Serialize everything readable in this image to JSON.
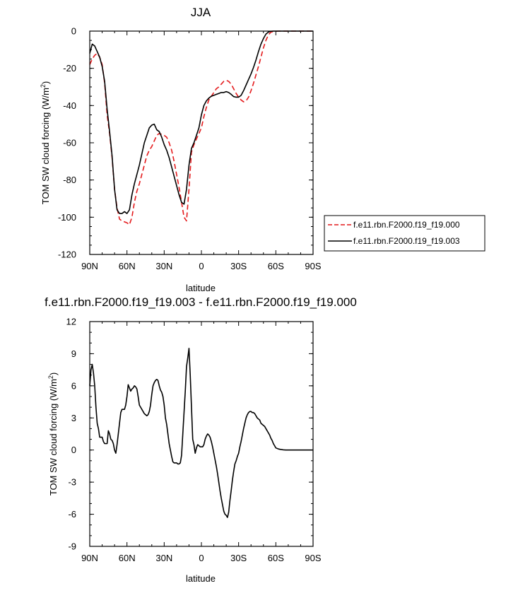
{
  "chart_data": [
    {
      "type": "line",
      "title": "JJA",
      "xlabel": "latitude",
      "ylabel_main": "TOM SW cloud forcing (W/m",
      "ylabel_sup": "2",
      "ylabel_close": ")",
      "xlim": [
        90,
        -90
      ],
      "ylim": [
        -120,
        0
      ],
      "xticks": [
        90,
        60,
        30,
        0,
        -30,
        -60,
        -90
      ],
      "xtick_labels": [
        "90N",
        "60N",
        "30N",
        "0",
        "30S",
        "60S",
        "90S"
      ],
      "yticks": [
        0,
        -20,
        -40,
        -60,
        -80,
        -100,
        -120
      ],
      "ytick_labels": [
        "0",
        "-20",
        "-40",
        "-60",
        "-80",
        "-100",
        "-120"
      ],
      "legend_position": "right",
      "series": [
        {
          "name": "f.e11.rbn.F2000.f19_f19.000",
          "color": "#e41a1c",
          "dash": "dashed",
          "x": [
            90,
            88,
            86,
            84,
            82,
            80,
            78,
            76,
            74,
            72,
            70,
            68,
            66,
            64,
            62,
            60,
            58,
            56,
            54,
            52,
            50,
            48,
            46,
            44,
            42,
            40,
            38,
            36,
            34,
            32,
            30,
            28,
            26,
            24,
            22,
            20,
            18,
            16,
            14,
            12,
            10,
            8,
            6,
            4,
            2,
            0,
            -2,
            -4,
            -6,
            -8,
            -10,
            -12,
            -14,
            -16,
            -18,
            -20,
            -22,
            -24,
            -26,
            -28,
            -30,
            -32,
            -34,
            -36,
            -38,
            -40,
            -42,
            -44,
            -46,
            -48,
            -50,
            -52,
            -54,
            -56,
            -58,
            -60,
            -62,
            -64,
            -66,
            -68,
            -70,
            -72,
            -74,
            -76,
            -78,
            -80,
            -82,
            -84,
            -86,
            -88,
            -90
          ],
          "y": [
            -18,
            -15,
            -13,
            -12,
            -14,
            -18,
            -28,
            -45,
            -55,
            -68,
            -85,
            -95,
            -101,
            -102,
            -102.5,
            -103,
            -104,
            -100,
            -92,
            -86,
            -82,
            -77,
            -72,
            -67,
            -64,
            -62,
            -59,
            -56,
            -55,
            -55.5,
            -56,
            -57,
            -60,
            -64,
            -70,
            -77,
            -84,
            -92,
            -100,
            -102,
            -85,
            -65,
            -61,
            -58,
            -55,
            -52,
            -46,
            -41,
            -37,
            -35,
            -33,
            -31,
            -30,
            -28.5,
            -27,
            -26.5,
            -27,
            -28.5,
            -31,
            -33.5,
            -35.5,
            -37,
            -38,
            -37.5,
            -35.5,
            -32,
            -28,
            -23.5,
            -19,
            -14,
            -9,
            -5,
            -2,
            -0.6,
            -0.2,
            -0.1,
            0,
            0,
            0,
            0,
            0,
            0,
            0,
            0,
            0,
            0,
            0,
            0,
            0,
            0,
            0
          ]
        },
        {
          "name": "f.e11.rbn.F2000.f19_f19.003",
          "color": "#000000",
          "dash": "solid",
          "x": [
            90,
            88,
            86,
            84,
            82,
            80,
            78,
            76,
            74,
            72,
            70,
            68,
            66,
            64,
            62,
            60,
            58,
            56,
            54,
            52,
            50,
            48,
            46,
            44,
            42,
            40,
            38,
            36,
            34,
            32,
            30,
            28,
            26,
            24,
            22,
            20,
            18,
            16,
            14,
            12,
            10,
            8,
            6,
            4,
            2,
            0,
            -2,
            -4,
            -6,
            -8,
            -10,
            -12,
            -14,
            -16,
            -18,
            -20,
            -22,
            -24,
            -26,
            -28,
            -30,
            -32,
            -34,
            -36,
            -38,
            -40,
            -42,
            -44,
            -46,
            -48,
            -50,
            -52,
            -54,
            -56,
            -58,
            -60,
            -62,
            -64,
            -66,
            -68,
            -70,
            -72,
            -74,
            -76,
            -78,
            -80,
            -82,
            -84,
            -86,
            -88,
            -90
          ],
          "y": [
            -12,
            -7,
            -8,
            -11,
            -14,
            -19,
            -27,
            -42,
            -54,
            -67,
            -85,
            -96,
            -98,
            -98,
            -97,
            -98,
            -96,
            -88,
            -82,
            -77,
            -72,
            -66,
            -60,
            -56,
            -52,
            -50.5,
            -50,
            -53,
            -54,
            -57,
            -61,
            -64,
            -68,
            -73,
            -78,
            -83,
            -88,
            -92,
            -93,
            -85,
            -72,
            -63,
            -60,
            -56,
            -52,
            -45,
            -40,
            -37.5,
            -36,
            -35,
            -34.5,
            -34,
            -33.5,
            -33,
            -33,
            -32.5,
            -33,
            -34,
            -35.2,
            -35.5,
            -35.5,
            -34.5,
            -32,
            -29,
            -26,
            -23,
            -19.5,
            -15.5,
            -11,
            -7,
            -4,
            -1.6,
            -0.5,
            -0.1,
            0,
            0,
            0,
            0,
            0,
            0,
            0,
            0,
            0,
            0,
            0,
            0,
            0,
            0,
            0,
            0,
            0
          ]
        }
      ]
    },
    {
      "type": "line",
      "title": "f.e11.rbn.F2000.f19_f19.003 - f.e11.rbn.F2000.f19_f19.000",
      "xlabel": "latitude",
      "ylabel_main": "TOM SW cloud forcing (W/m",
      "ylabel_sup": "2",
      "ylabel_close": ")",
      "xlim": [
        90,
        -90
      ],
      "ylim": [
        -9,
        12
      ],
      "xticks": [
        90,
        60,
        30,
        0,
        -30,
        -60,
        -90
      ],
      "xtick_labels": [
        "90N",
        "60N",
        "30N",
        "0",
        "30S",
        "60S",
        "90S"
      ],
      "yticks": [
        12,
        9,
        6,
        3,
        0,
        -3,
        -6,
        -9
      ],
      "ytick_labels": [
        "12",
        "9",
        "6",
        "3",
        "0",
        "-3",
        "-6",
        "-9"
      ],
      "series": [
        {
          "color": "#000000",
          "dash": "solid",
          "x": [
            90,
            89,
            88,
            87,
            86,
            85,
            84,
            83,
            82,
            81,
            80,
            79,
            78,
            77,
            76,
            75,
            74,
            73,
            72,
            71,
            70,
            69,
            68,
            67,
            66,
            65,
            64,
            63,
            62,
            61,
            60,
            59,
            58,
            57,
            56,
            55,
            54,
            53,
            52,
            51,
            50,
            49,
            48,
            47,
            46,
            45,
            44,
            43,
            42,
            41,
            40,
            39,
            38,
            37,
            36,
            35,
            34,
            33,
            32,
            31,
            30,
            29,
            28,
            27,
            26,
            25,
            24,
            23,
            22,
            21,
            20,
            19,
            18,
            17,
            16,
            15,
            14,
            13,
            12,
            11,
            10,
            9,
            8,
            7,
            6,
            5,
            4,
            3,
            2,
            1,
            0,
            -1,
            -2,
            -3,
            -4,
            -5,
            -6,
            -7,
            -8,
            -9,
            -10,
            -11,
            -12,
            -13,
            -14,
            -15,
            -16,
            -17,
            -18,
            -19,
            -20,
            -21,
            -22,
            -23,
            -24,
            -25,
            -26,
            -27,
            -28,
            -29,
            -30,
            -31,
            -32,
            -33,
            -34,
            -35,
            -36,
            -37,
            -38,
            -39,
            -40,
            -41,
            -42,
            -43,
            -44,
            -45,
            -46,
            -47,
            -48,
            -49,
            -50,
            -51,
            -52,
            -53,
            -54,
            -55,
            -56,
            -57,
            -58,
            -59,
            -60,
            -62,
            -64,
            -66,
            -68,
            -70,
            -72,
            -74,
            -76,
            -78,
            -80,
            -82,
            -84,
            -86,
            -88,
            -90
          ],
          "y": [
            6.0,
            7.5,
            8.0,
            7.2,
            6.0,
            4.0,
            2.5,
            2.0,
            1.2,
            1.2,
            1.2,
            0.8,
            0.6,
            0.6,
            0.6,
            1.8,
            1.5,
            1.0,
            0.9,
            0.6,
            0.0,
            -0.3,
            0.5,
            1.5,
            2.5,
            3.5,
            3.8,
            3.8,
            3.8,
            4.2,
            5.0,
            6.1,
            5.8,
            5.5,
            5.7,
            5.8,
            6.0,
            5.9,
            5.7,
            5.0,
            4.2,
            4.0,
            3.8,
            3.6,
            3.4,
            3.3,
            3.2,
            3.3,
            3.6,
            4.2,
            5.2,
            6.0,
            6.3,
            6.5,
            6.6,
            6.5,
            6.0,
            5.6,
            5.4,
            5.0,
            4.2,
            3.0,
            2.4,
            1.5,
            0.6,
            0.0,
            -0.6,
            -1.1,
            -1.2,
            -1.2,
            -1.2,
            -1.3,
            -1.3,
            -1.2,
            -0.5,
            1.5,
            3.5,
            5.5,
            7.8,
            8.6,
            9.5,
            7.0,
            4.0,
            1.0,
            0.5,
            -0.3,
            0.2,
            0.5,
            0.4,
            0.3,
            0.3,
            0.3,
            0.5,
            1.0,
            1.3,
            1.5,
            1.4,
            1.2,
            0.8,
            0.3,
            -0.3,
            -0.9,
            -1.5,
            -2.2,
            -3.0,
            -3.8,
            -4.5,
            -5.1,
            -5.7,
            -6.0,
            -6.1,
            -6.3,
            -5.8,
            -4.7,
            -3.8,
            -2.8,
            -2.0,
            -1.3,
            -1.0,
            -0.6,
            -0.3,
            0.3,
            0.8,
            1.4,
            2.0,
            2.5,
            3.0,
            3.3,
            3.5,
            3.6,
            3.6,
            3.5,
            3.5,
            3.4,
            3.2,
            3.0,
            2.9,
            2.8,
            2.5,
            2.4,
            2.3,
            2.2,
            2.0,
            1.8,
            1.6,
            1.4,
            1.1,
            0.9,
            0.6,
            0.4,
            0.2,
            0.1,
            0.05,
            0.02,
            0.0,
            0.0,
            0.0,
            0.0,
            0.0,
            0.0,
            0.0,
            0.0,
            0.0,
            0.0,
            0.0,
            0.0
          ]
        }
      ]
    }
  ]
}
